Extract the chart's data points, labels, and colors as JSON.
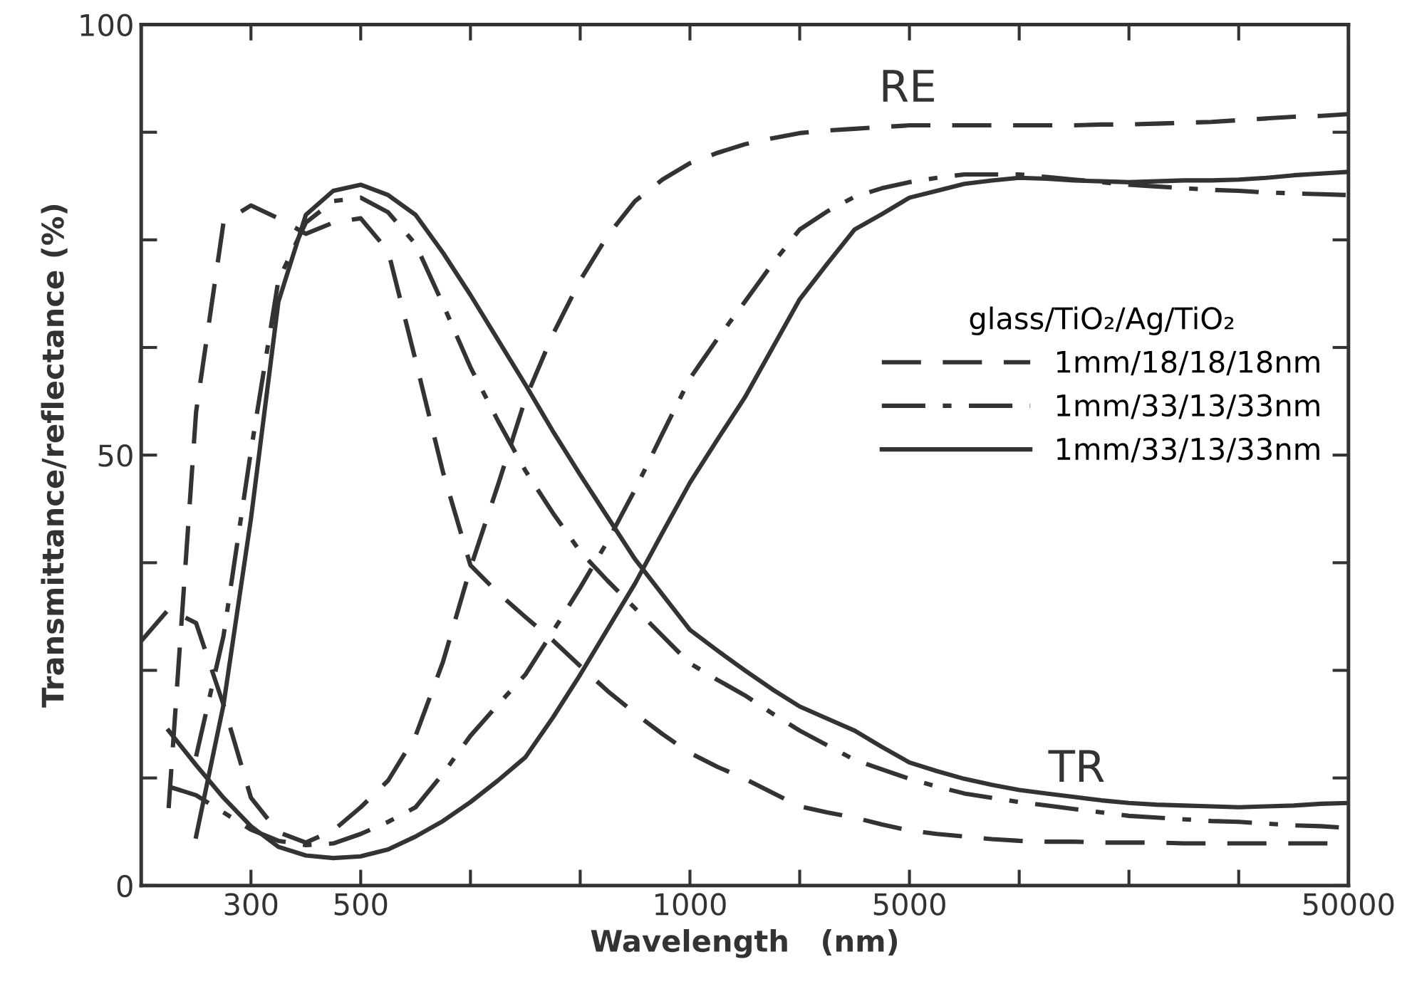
{
  "chart_data": {
    "type": "line",
    "xlabel": "Wavelength   (nm)",
    "ylabel": "Transmittance/reflectance (%)",
    "legend_title": "glass/TiO₂/Ag/TiO₂",
    "legend": "right",
    "grid": false,
    "marker": "none",
    "categories": [
      null,
      null,
      null,
      null,
      "300",
      null,
      null,
      null,
      "500",
      null,
      null,
      null,
      null,
      null,
      null,
      null,
      null,
      null,
      null,
      null,
      "1000",
      null,
      null,
      null,
      null,
      null,
      null,
      null,
      "5000",
      null,
      null,
      null,
      null,
      null,
      null,
      null,
      null,
      null,
      null,
      null,
      null,
      null,
      null,
      null,
      "50000"
    ],
    "ylim": [
      0,
      100
    ],
    "yticks": [
      0,
      {
        "value": 12.5,
        "label": null
      },
      {
        "value": 25,
        "label": null
      },
      {
        "value": 37.5,
        "label": null
      },
      50,
      {
        "value": 62.5,
        "label": null
      },
      {
        "value": 75,
        "label": null
      },
      {
        "value": 87.5,
        "label": null
      },
      100
    ],
    "series": [
      {
        "name": "1mm/18/18/18nm",
        "color": "#333333",
        "line_style": "dashed",
        "values": [
          null,
          9,
          55,
          77,
          79,
          77.5,
          75.7,
          77,
          77.5,
          73.7,
          61,
          48,
          37.2,
          34,
          31.2,
          28.5,
          25.5,
          22.6,
          20,
          17.6,
          15.4,
          13.8,
          12.4,
          10.8,
          9.2,
          8.5,
          7.9,
          7.1,
          6.4,
          6.0,
          5.7,
          5.4,
          5.2,
          5.1,
          5.1,
          5.0,
          5.0,
          5.0,
          4.9,
          4.9,
          4.9,
          4.9,
          4.9,
          4.9,
          4.9
        ]
      },
      {
        "name": "1mm/33/13/33nm",
        "color": "#333333",
        "line_style": "dashdot",
        "values": [
          null,
          null,
          15,
          29,
          50.5,
          70.3,
          77,
          79.5,
          79.9,
          78.2,
          74.5,
          67.5,
          60.2,
          54,
          48.2,
          43.3,
          38.8,
          35.4,
          32.2,
          29,
          25.8,
          23.9,
          22.1,
          20,
          18,
          16.3,
          14.6,
          13.5,
          12.4,
          11.5,
          10.7,
          10.2,
          9.7,
          9.3,
          8.9,
          8.5,
          8.1,
          7.9,
          7.7,
          7.5,
          7.4,
          7.2,
          7.0,
          6.9,
          6.7
        ]
      },
      {
        "name": "1mm/33/13/33nm",
        "color": "#333333",
        "line_style": "solid",
        "values": [
          null,
          null,
          5.7,
          21,
          42.6,
          67.8,
          77.9,
          80.7,
          81.4,
          80.2,
          77.9,
          73.5,
          68.6,
          63.4,
          58.2,
          52.8,
          47.7,
          42.8,
          37.9,
          33.8,
          29.7,
          27.3,
          25,
          22.8,
          20.8,
          19.4,
          18,
          16.1,
          14.3,
          13.3,
          12.4,
          11.7,
          11.1,
          10.7,
          10.3,
          9.9,
          9.6,
          9.4,
          9.3,
          9.2,
          9.1,
          9.2,
          9.3,
          9.5,
          9.6
        ]
      },
      {
        "color": "#333333",
        "line_style": "dashed",
        "values": [
          28.4,
          32.1,
          30.5,
          21,
          10.2,
          6.2,
          5.0,
          6.4,
          9.1,
          12.2,
          17.4,
          26,
          36.9,
          46.5,
          56.5,
          64,
          70.3,
          75.5,
          79.5,
          82,
          83.9,
          85.1,
          86.1,
          86.8,
          87.4,
          87.7,
          87.9,
          88.1,
          88.3,
          88.3,
          88.3,
          88.3,
          88.3,
          88.3,
          88.3,
          88.4,
          88.4,
          88.5,
          88.6,
          88.7,
          88.9,
          89.1,
          89.3,
          89.4,
          89.6
        ]
      },
      {
        "color": "#333333",
        "line_style": "dashdot",
        "values": [
          null,
          11.5,
          10.5,
          8.5,
          6.5,
          5.2,
          4.7,
          4.9,
          6,
          7.4,
          9.1,
          13,
          17.4,
          21,
          24.5,
          29.5,
          34.6,
          40,
          46,
          52.5,
          58.9,
          63.5,
          67.8,
          72.2,
          76.2,
          78.3,
          80,
          81,
          81.7,
          82.2,
          82.6,
          82.6,
          82.6,
          82.3,
          82,
          81.7,
          81.4,
          81.2,
          81,
          80.8,
          80.7,
          80.5,
          80.4,
          80.3,
          80.2
        ]
      },
      {
        "color": "#333333",
        "line_style": "solid",
        "values": [
          null,
          18,
          14,
          10.2,
          6.9,
          4.5,
          3.5,
          3.2,
          3.4,
          4.2,
          5.7,
          7.5,
          9.7,
          12.2,
          14.9,
          19.5,
          24.5,
          29.8,
          35.1,
          41,
          46.8,
          51.8,
          56.7,
          62.4,
          68.1,
          72.2,
          76.2,
          78,
          79.9,
          80.7,
          81.5,
          81.9,
          82.2,
          82.1,
          81.9,
          81.8,
          81.7,
          81.8,
          81.9,
          81.9,
          82,
          82.2,
          82.5,
          82.7,
          82.9
        ]
      }
    ],
    "annotations": [
      "RE",
      "TR"
    ]
  }
}
